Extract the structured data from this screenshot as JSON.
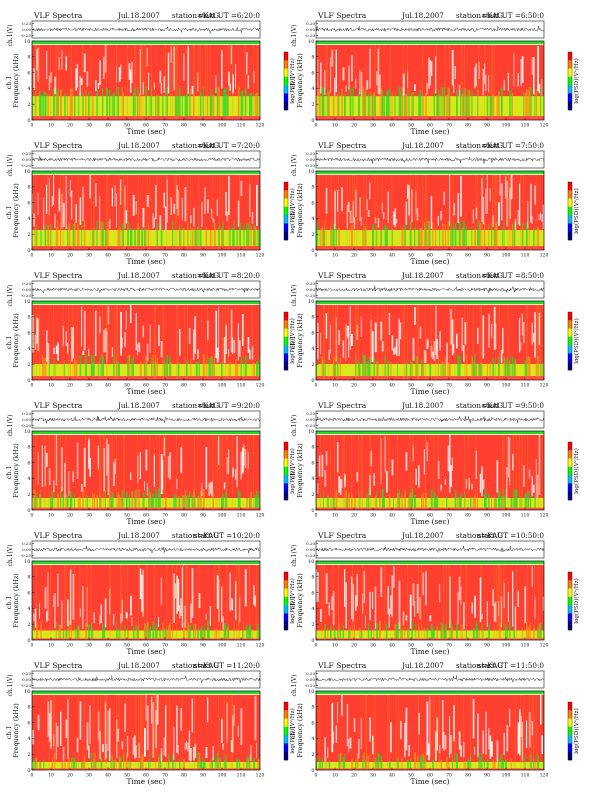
{
  "colors": {
    "hi": "#ff2a1a",
    "mid": "#ff8a1a",
    "yel": "#d8e81a",
    "grn": "#2ad62a",
    "axis": "#111111",
    "colorbar": [
      "#ff0000",
      "#ff7f00",
      "#ffff00",
      "#00ff00",
      "#00bfff",
      "#0000ff",
      "#000080"
    ]
  },
  "chart_data": [
    {
      "type": "heatmap",
      "title_left": "VLF Spectra",
      "date": "Jul.18.2007",
      "station": "station=KAG",
      "start": "start UT =6:20:0",
      "top_ylabel": "ch.1(V)",
      "top_ticks": [
        "0.20",
        "0.00",
        "-0.20"
      ],
      "ylabel_left": "ch.1",
      "ylabel": "Frequency (kHz)",
      "yticks": [
        "10",
        "8",
        "6",
        "4",
        "2",
        "0"
      ],
      "xticks": [
        "0",
        "10",
        "20",
        "30",
        "40",
        "50",
        "60",
        "70",
        "80",
        "90",
        "100",
        "110",
        "120"
      ],
      "xlabel": "Time (sec)",
      "colorbar_label": "log(PSD)(V²/Hz)",
      "xlim": [
        0,
        120
      ],
      "ylim": [
        0,
        10
      ],
      "red_band_khz": [
        3,
        9.5
      ],
      "green_lower_khz": [
        0.5,
        3
      ]
    },
    {
      "type": "heatmap",
      "title_left": "VLF Spectra",
      "date": "Jul.18.2007",
      "station": "station=KAG",
      "start": "start UT =6:50:0",
      "top_ylabel": "ch.1(V)",
      "top_ticks": [
        "0.20",
        "0.00",
        "-0.20"
      ],
      "ylabel_left": "ch.1",
      "ylabel": "Frequency (kHz)",
      "yticks": [
        "10",
        "8",
        "6",
        "4",
        "2",
        "0"
      ],
      "xticks": [
        "0",
        "10",
        "20",
        "30",
        "40",
        "50",
        "60",
        "70",
        "80",
        "90",
        "100",
        "110",
        "120"
      ],
      "xlabel": "Time (sec)",
      "colorbar_label": "log(PSD)(V²/Hz)",
      "xlim": [
        0,
        120
      ],
      "ylim": [
        0,
        10
      ],
      "red_band_khz": [
        3,
        9.5
      ],
      "green_lower_khz": [
        0.5,
        3
      ]
    },
    {
      "type": "heatmap",
      "title_left": "VLF Spectra",
      "date": "Jul.18.2007",
      "station": "station=KAG",
      "start": "start UT =7:20:0",
      "top_ylabel": "ch.1(V)",
      "top_ticks": [
        "0.20",
        "0.00",
        "-0.20"
      ],
      "ylabel_left": "ch.1",
      "ylabel": "Frequency (kHz)",
      "yticks": [
        "10",
        "8",
        "6",
        "4",
        "2",
        "0"
      ],
      "xticks": [
        "0",
        "10",
        "20",
        "30",
        "40",
        "50",
        "60",
        "70",
        "80",
        "90",
        "100",
        "110",
        "120"
      ],
      "xlabel": "Time (sec)",
      "colorbar_label": "log(PSD)(V²/Hz)",
      "xlim": [
        0,
        120
      ],
      "ylim": [
        0,
        10
      ],
      "red_band_khz": [
        2.5,
        9.5
      ],
      "green_lower_khz": [
        0.5,
        2.5
      ]
    },
    {
      "type": "heatmap",
      "title_left": "VLF Spectra",
      "date": "Jul.18.2007",
      "station": "station=KAG",
      "start": "start UT =7:50:0",
      "top_ylabel": "ch.1(V)",
      "top_ticks": [
        "0.20",
        "0.00",
        "-0.20"
      ],
      "ylabel_left": "ch.1",
      "ylabel": "Frequency (kHz)",
      "yticks": [
        "10",
        "8",
        "6",
        "4",
        "2",
        "0"
      ],
      "xticks": [
        "0",
        "10",
        "20",
        "30",
        "40",
        "50",
        "60",
        "70",
        "80",
        "90",
        "100",
        "110",
        "120"
      ],
      "xlabel": "Time (sec)",
      "colorbar_label": "log(PSD)(V²/Hz)",
      "xlim": [
        0,
        120
      ],
      "ylim": [
        0,
        10
      ],
      "red_band_khz": [
        2.5,
        9.5
      ],
      "green_lower_khz": [
        0.5,
        2.5
      ]
    },
    {
      "type": "heatmap",
      "title_left": "VLF Spectra",
      "date": "Jul.18.2007",
      "station": "station=KAG",
      "start": "start UT =8:20:0",
      "top_ylabel": "ch.1(V)",
      "top_ticks": [
        "0.20",
        "0.00",
        "-0.20"
      ],
      "ylabel_left": "ch.1",
      "ylabel": "Frequency (kHz)",
      "yticks": [
        "10",
        "8",
        "6",
        "4",
        "2",
        "0"
      ],
      "xticks": [
        "0",
        "10",
        "20",
        "30",
        "40",
        "50",
        "60",
        "70",
        "80",
        "90",
        "100",
        "110",
        "120"
      ],
      "xlabel": "Time (sec)",
      "colorbar_label": "log(PSD)(V²/Hz)",
      "xlim": [
        0,
        120
      ],
      "ylim": [
        0,
        10
      ],
      "red_band_khz": [
        2,
        9.5
      ],
      "green_lower_khz": [
        0.5,
        2
      ]
    },
    {
      "type": "heatmap",
      "title_left": "VLF Spectra",
      "date": "Jul.18.2007",
      "station": "station=KAG",
      "start": "start UT =8:50:0",
      "top_ylabel": "ch.1(V)",
      "top_ticks": [
        "0.20",
        "0.00",
        "-0.20"
      ],
      "ylabel_left": "ch.1",
      "ylabel": "Frequency (kHz)",
      "yticks": [
        "10",
        "8",
        "6",
        "4",
        "2",
        "0"
      ],
      "xticks": [
        "0",
        "10",
        "20",
        "30",
        "40",
        "50",
        "60",
        "70",
        "80",
        "90",
        "100",
        "110",
        "120"
      ],
      "xlabel": "Time (sec)",
      "colorbar_label": "log(PSD)(V²/Hz)",
      "xlim": [
        0,
        120
      ],
      "ylim": [
        0,
        10
      ],
      "red_band_khz": [
        2,
        9.5
      ],
      "green_lower_khz": [
        0.5,
        2
      ]
    },
    {
      "type": "heatmap",
      "title_left": "VLF Spectra",
      "date": "Jul.18.2007",
      "station": "station=KAG",
      "start": "start UT =9:20:0",
      "top_ylabel": "ch.1(V)",
      "top_ticks": [
        "0.20",
        "0.00",
        "-0.20"
      ],
      "ylabel_left": "ch.1",
      "ylabel": "Frequency (kHz)",
      "yticks": [
        "10",
        "8",
        "6",
        "4",
        "2",
        "0"
      ],
      "xticks": [
        "0",
        "10",
        "20",
        "30",
        "40",
        "50",
        "60",
        "70",
        "80",
        "90",
        "100",
        "110",
        "120"
      ],
      "xlabel": "Time (sec)",
      "colorbar_label": "log(PSD)(V²/Hz)",
      "xlim": [
        0,
        120
      ],
      "ylim": [
        0,
        10
      ],
      "red_band_khz": [
        1.5,
        9.5
      ],
      "green_lower_khz": [
        0.3,
        1.5
      ]
    },
    {
      "type": "heatmap",
      "title_left": "VLF Spectra",
      "date": "Jul.18.2007",
      "station": "station=KAG",
      "start": "start UT =9:50:0",
      "top_ylabel": "ch.1(V)",
      "top_ticks": [
        "0.20",
        "0.00",
        "-0.20"
      ],
      "ylabel_left": "ch.1",
      "ylabel": "Frequency (kHz)",
      "yticks": [
        "10",
        "8",
        "6",
        "4",
        "2",
        "0"
      ],
      "xticks": [
        "0",
        "10",
        "20",
        "30",
        "40",
        "50",
        "60",
        "70",
        "80",
        "90",
        "100",
        "110",
        "120"
      ],
      "xlabel": "Time (sec)",
      "colorbar_label": "log(PSD)(V²/Hz)",
      "xlim": [
        0,
        120
      ],
      "ylim": [
        0,
        10
      ],
      "red_band_khz": [
        1.5,
        9.5
      ],
      "green_lower_khz": [
        0.3,
        1.5
      ]
    },
    {
      "type": "heatmap",
      "title_left": "VLF Spectra",
      "date": "Jul.18.2007",
      "station": "station=KAG",
      "start": "start UT =10:20:0",
      "top_ylabel": "ch.1(V)",
      "top_ticks": [
        "0.20",
        "0.00",
        "-0.20"
      ],
      "ylabel_left": "ch.1",
      "ylabel": "Frequency (kHz)",
      "yticks": [
        "10",
        "8",
        "6",
        "4",
        "2",
        "0"
      ],
      "xticks": [
        "0",
        "10",
        "20",
        "30",
        "40",
        "50",
        "60",
        "70",
        "80",
        "90",
        "100",
        "110",
        "120"
      ],
      "xlabel": "Time (sec)",
      "colorbar_label": "log(PSD)(V²/Hz)",
      "xlim": [
        0,
        120
      ],
      "ylim": [
        0,
        10
      ],
      "red_band_khz": [
        1.2,
        9.5
      ],
      "green_lower_khz": [
        0.2,
        1.2
      ]
    },
    {
      "type": "heatmap",
      "title_left": "VLF Spectra",
      "date": "Jul.18.2007",
      "station": "station=KAG",
      "start": "start UT =10:50:0",
      "top_ylabel": "ch.1(V)",
      "top_ticks": [
        "0.20",
        "0.00",
        "-0.20"
      ],
      "ylabel_left": "ch.1",
      "ylabel": "Frequency (kHz)",
      "yticks": [
        "10",
        "8",
        "6",
        "4",
        "2",
        "0"
      ],
      "xticks": [
        "0",
        "10",
        "20",
        "30",
        "40",
        "50",
        "60",
        "70",
        "80",
        "90",
        "100",
        "110",
        "120"
      ],
      "xlabel": "Time (sec)",
      "colorbar_label": "log(PSD)(V²/Hz)",
      "xlim": [
        0,
        120
      ],
      "ylim": [
        0,
        10
      ],
      "red_band_khz": [
        1.2,
        9.5
      ],
      "green_lower_khz": [
        0.2,
        1.2
      ]
    },
    {
      "type": "heatmap",
      "title_left": "VLF Spectra",
      "date": "Jul.18.2007",
      "station": "station=KAG",
      "start": "start UT =11:20:0",
      "top_ylabel": "ch.1(V)",
      "top_ticks": [
        "0.20",
        "0.00",
        "-0.20"
      ],
      "ylabel_left": "ch.1",
      "ylabel": "Frequency (kHz)",
      "yticks": [
        "10",
        "8",
        "6",
        "4",
        "2",
        "0"
      ],
      "xticks": [
        "0",
        "10",
        "20",
        "30",
        "40",
        "50",
        "60",
        "70",
        "80",
        "90",
        "100",
        "110",
        "120"
      ],
      "xlabel": "Time (sec)",
      "colorbar_label": "log(PSD)(V²/Hz)",
      "xlim": [
        0,
        120
      ],
      "ylim": [
        0,
        10
      ],
      "red_band_khz": [
        1,
        9.5
      ],
      "green_lower_khz": [
        0.2,
        1
      ]
    },
    {
      "type": "heatmap",
      "title_left": "VLF Spectra",
      "date": "Jul.18.2007",
      "station": "station=KAG",
      "start": "start UT =11:50:0",
      "top_ylabel": "ch.1(V)",
      "top_ticks": [
        "0.20",
        "0.00",
        "-0.20"
      ],
      "ylabel_left": "ch.1",
      "ylabel": "Frequency (kHz)",
      "yticks": [
        "10",
        "8",
        "6",
        "4",
        "2",
        "0"
      ],
      "xticks": [
        "0",
        "10",
        "20",
        "30",
        "40",
        "50",
        "60",
        "70",
        "80",
        "90",
        "100",
        "110",
        "120"
      ],
      "xlabel": "Time (sec)",
      "colorbar_label": "log(PSD)(V²/Hz)",
      "xlim": [
        0,
        120
      ],
      "ylim": [
        0,
        10
      ],
      "red_band_khz": [
        1,
        9.5
      ],
      "green_lower_khz": [
        0.2,
        1
      ]
    }
  ]
}
